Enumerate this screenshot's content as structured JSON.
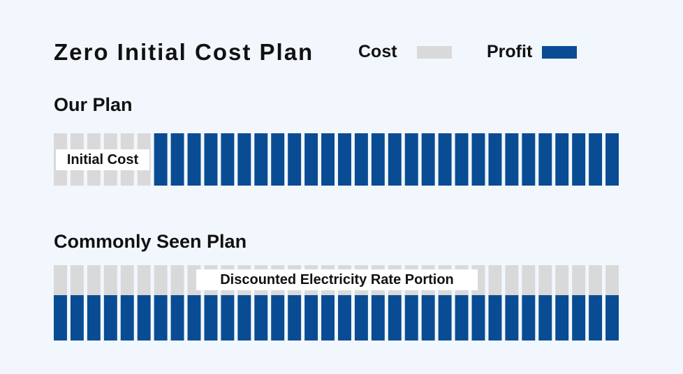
{
  "header": {
    "title": "Zero Initial Cost Plan",
    "legend": [
      {
        "label": "Cost",
        "color": "#d9d9d9"
      },
      {
        "label": "Profit",
        "color": "#0a4c93"
      }
    ]
  },
  "our_plan": {
    "title": "Our Plan",
    "total_blocks": 34,
    "cost_blocks": 6,
    "label": "Initial Cost"
  },
  "common_plan": {
    "title": "Commonly Seen Plan",
    "total_blocks": 34,
    "label": "Discounted Electricity Rate Portion"
  },
  "colors": {
    "background": "#f2f7fd",
    "cost": "#d9d9d9",
    "profit": "#0a4c93"
  }
}
